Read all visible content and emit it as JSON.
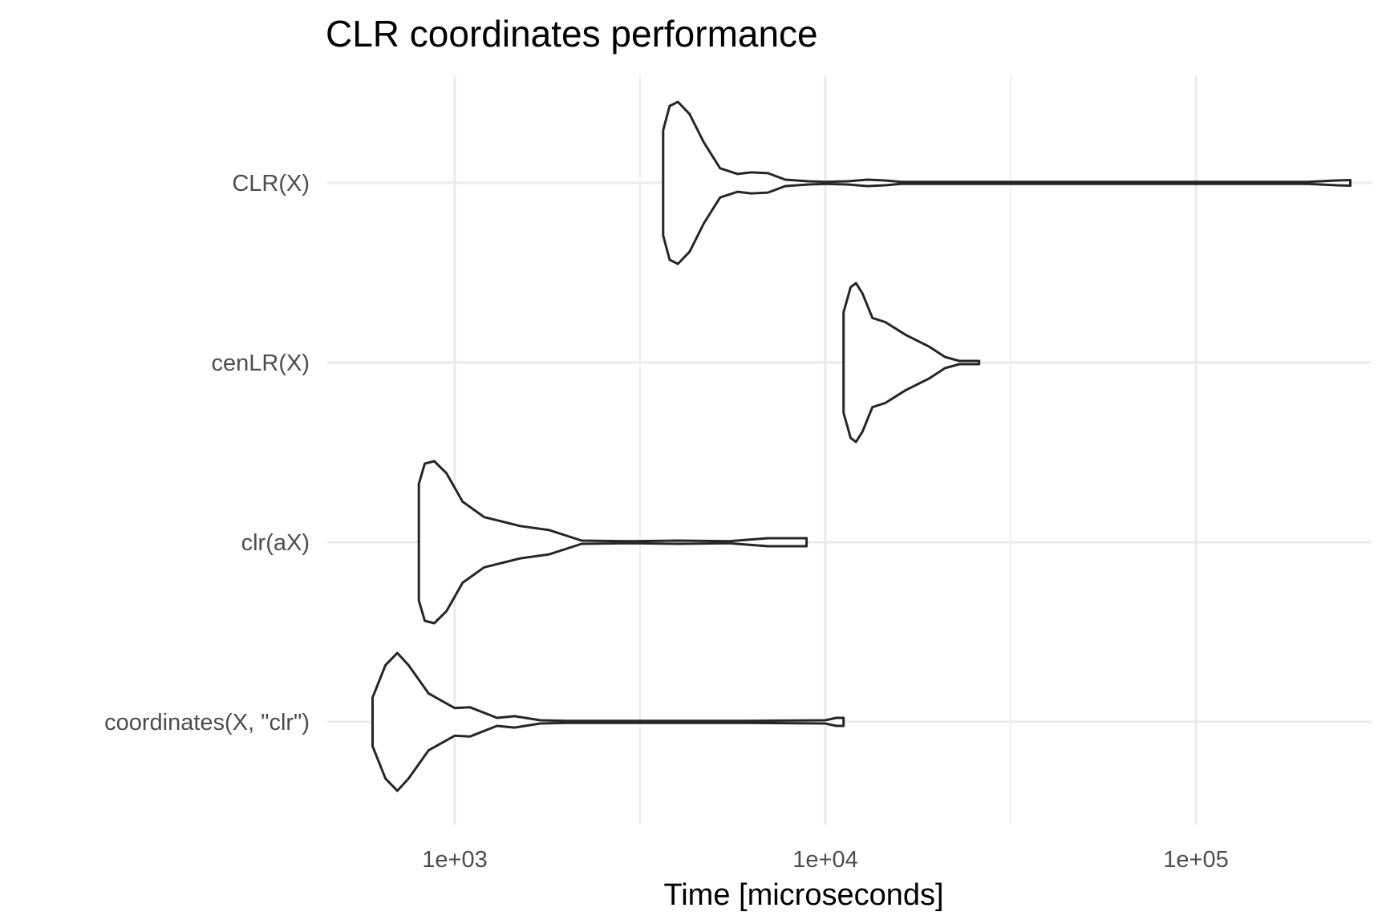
{
  "chart_data": {
    "type": "violin",
    "title": "CLR coordinates performance",
    "xlabel": "Time [microseconds]",
    "ylabel": "",
    "x_scale": "log10",
    "xlim": [
      500,
      300000
    ],
    "x_ticks": [
      {
        "value": 1000,
        "label": "1e+03"
      },
      {
        "value": 10000,
        "label": "1e+04"
      },
      {
        "value": 100000,
        "label": "1e+05"
      }
    ],
    "x_minor_ticks": [
      3162,
      31623
    ],
    "grid": true,
    "legend": "none",
    "categories": [
      "CLR(X)",
      "cenLR(X)",
      "clr(aX)",
      "coordinates(X, \"clr\")"
    ],
    "series": [
      {
        "category": "CLR(X)",
        "min": 3650,
        "max": 261000,
        "density": [
          [
            3650,
            0.65
          ],
          [
            3800,
            0.95
          ],
          [
            4000,
            1.0
          ],
          [
            4300,
            0.85
          ],
          [
            4700,
            0.5
          ],
          [
            5200,
            0.18
          ],
          [
            5800,
            0.11
          ],
          [
            6300,
            0.13
          ],
          [
            7000,
            0.12
          ],
          [
            7800,
            0.04
          ],
          [
            9000,
            0.02
          ],
          [
            10000,
            0.01
          ],
          [
            11500,
            0.02
          ],
          [
            13000,
            0.04
          ],
          [
            14500,
            0.03
          ],
          [
            16000,
            0.01
          ],
          [
            30000,
            0.005
          ],
          [
            100000,
            0.005
          ],
          [
            200000,
            0.008
          ],
          [
            240000,
            0.03
          ],
          [
            261000,
            0.035
          ]
        ]
      },
      {
        "category": "cenLR(X)",
        "min": 11200,
        "max": 26000,
        "density": [
          [
            11200,
            0.62
          ],
          [
            11700,
            0.93
          ],
          [
            12100,
            0.98
          ],
          [
            12600,
            0.85
          ],
          [
            13400,
            0.55
          ],
          [
            14500,
            0.5
          ],
          [
            16500,
            0.34
          ],
          [
            19000,
            0.2
          ],
          [
            21000,
            0.07
          ],
          [
            23000,
            0.02
          ],
          [
            25000,
            0.02
          ],
          [
            26000,
            0.02
          ]
        ]
      },
      {
        "category": "clr(aX)",
        "min": 800,
        "max": 8900,
        "density": [
          [
            800,
            0.72
          ],
          [
            830,
            0.97
          ],
          [
            880,
            1.0
          ],
          [
            950,
            0.85
          ],
          [
            1050,
            0.5
          ],
          [
            1200,
            0.31
          ],
          [
            1500,
            0.2
          ],
          [
            1800,
            0.15
          ],
          [
            2200,
            0.02
          ],
          [
            3000,
            0.01
          ],
          [
            4000,
            0.02
          ],
          [
            5500,
            0.01
          ],
          [
            7000,
            0.05
          ],
          [
            8900,
            0.05
          ]
        ]
      },
      {
        "category": "coordinates(X, \"clr\")",
        "min": 600,
        "max": 11200,
        "density": [
          [
            600,
            0.3
          ],
          [
            650,
            0.7
          ],
          [
            700,
            0.85
          ],
          [
            750,
            0.7
          ],
          [
            850,
            0.35
          ],
          [
            1000,
            0.17
          ],
          [
            1100,
            0.18
          ],
          [
            1300,
            0.05
          ],
          [
            1450,
            0.07
          ],
          [
            1700,
            0.02
          ],
          [
            2000,
            0.01
          ],
          [
            3000,
            0.005
          ],
          [
            6000,
            0.005
          ],
          [
            10000,
            0.02
          ],
          [
            10700,
            0.05
          ],
          [
            11200,
            0.05
          ]
        ]
      }
    ]
  }
}
